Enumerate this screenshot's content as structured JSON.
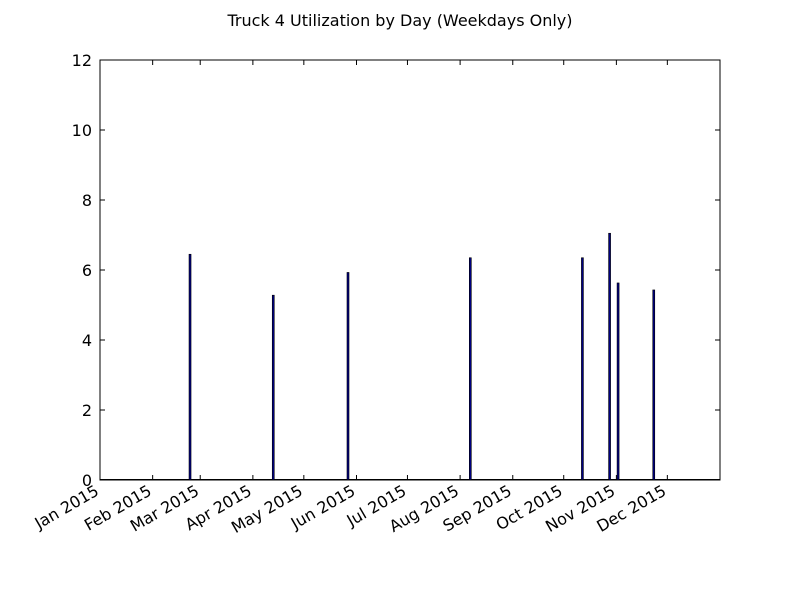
{
  "chart_data": {
    "type": "bar",
    "title": "Truck 4 Utilization by Day (Weekdays Only)",
    "xlabel": "",
    "ylabel": "",
    "x_axis_type": "date",
    "xlim": [
      "2015-01-01",
      "2016-01-01"
    ],
    "ylim": [
      0,
      12
    ],
    "y_ticks": [
      0,
      2,
      4,
      6,
      8,
      10,
      12
    ],
    "x_tick_labels": [
      {
        "date": "2015-01-01",
        "label": "Jan 2015"
      },
      {
        "date": "2015-02-01",
        "label": "Feb 2015"
      },
      {
        "date": "2015-03-01",
        "label": "Mar 2015"
      },
      {
        "date": "2015-04-01",
        "label": "Apr 2015"
      },
      {
        "date": "2015-05-01",
        "label": "May 2015"
      },
      {
        "date": "2015-06-01",
        "label": "Jun 2015"
      },
      {
        "date": "2015-07-01",
        "label": "Jul 2015"
      },
      {
        "date": "2015-08-01",
        "label": "Aug 2015"
      },
      {
        "date": "2015-09-01",
        "label": "Sep 2015"
      },
      {
        "date": "2015-10-01",
        "label": "Oct 2015"
      },
      {
        "date": "2015-11-01",
        "label": "Nov 2015"
      },
      {
        "date": "2015-12-01",
        "label": "Dec 2015"
      }
    ],
    "grid": false,
    "legend": "none",
    "bar_color": "#000080",
    "points": [
      {
        "date": "2015-02-23",
        "value": 6.45
      },
      {
        "date": "2015-04-13",
        "value": 5.28
      },
      {
        "date": "2015-05-27",
        "value": 5.93
      },
      {
        "date": "2015-08-07",
        "value": 6.35
      },
      {
        "date": "2015-10-12",
        "value": 6.35
      },
      {
        "date": "2015-10-28",
        "value": 7.05
      },
      {
        "date": "2015-11-02",
        "value": 5.63
      },
      {
        "date": "2015-11-23",
        "value": 5.43
      }
    ]
  }
}
